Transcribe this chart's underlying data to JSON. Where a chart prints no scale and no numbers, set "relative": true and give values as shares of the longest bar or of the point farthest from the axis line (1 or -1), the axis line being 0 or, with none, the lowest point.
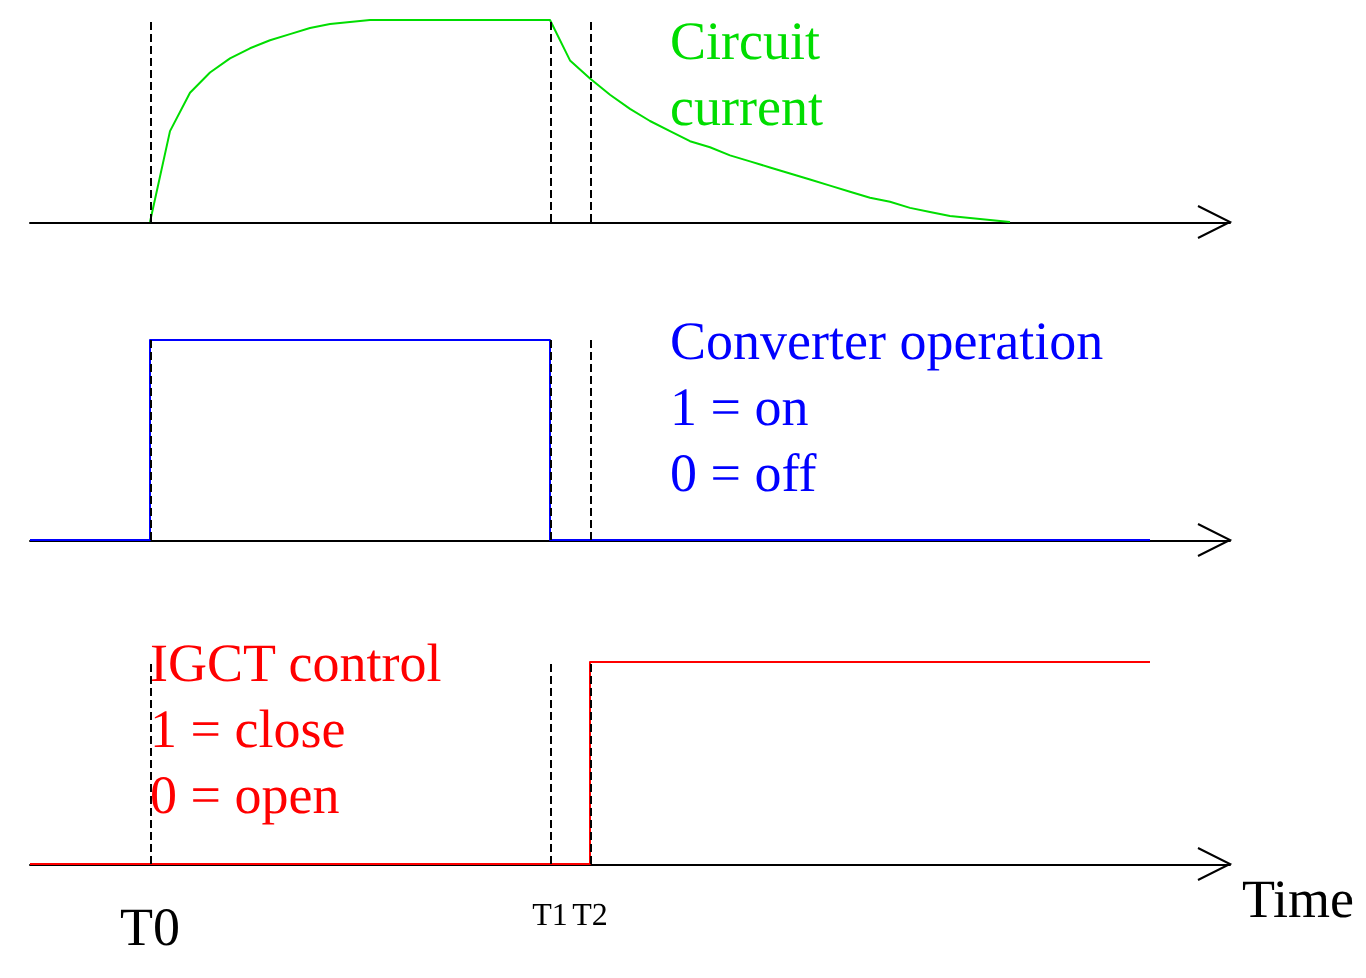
{
  "chart_data": [
    {
      "type": "line",
      "relative": true,
      "tick_labels": false,
      "grid": false,
      "marker": "none",
      "line_style": "solid",
      "categories": [
        null,
        null,
        null,
        null,
        null,
        null,
        "T0",
        null,
        null,
        null,
        null,
        null,
        null,
        null,
        null,
        null,
        null,
        null,
        null,
        null,
        null,
        null,
        null,
        null,
        null,
        null,
        "T1",
        null,
        "T2",
        null,
        null,
        null,
        null,
        null,
        null,
        null,
        null,
        null,
        null,
        null,
        null,
        null,
        null,
        null,
        null,
        null,
        null,
        null,
        null,
        null,
        null,
        null,
        null,
        null,
        null,
        null,
        null,
        null,
        null,
        null,
        null
      ],
      "series": [
        {
          "name": "Circuit current",
          "color": "#00dd00",
          "values": [
            null,
            null,
            null,
            null,
            null,
            null,
            0,
            0.45,
            0.64,
            0.74,
            0.81,
            0.86,
            0.9,
            0.93,
            0.96,
            0.98,
            0.99,
            1,
            1,
            1,
            1,
            1,
            1,
            1,
            1,
            1,
            1,
            0.8,
            0.71,
            0.63,
            0.56,
            0.5,
            0.45,
            0.4,
            0.37,
            0.33,
            0.3,
            0.27,
            0.24,
            0.21,
            0.18,
            0.15,
            0.12,
            0.1,
            0.07,
            0.05,
            0.03,
            0.02,
            0.01,
            0,
            null,
            null,
            null,
            null,
            null,
            null,
            null,
            null,
            null,
            null,
            null
          ]
        }
      ],
      "ref_lines": [
        {
          "axis": "x",
          "value": "T0",
          "color": "#000000",
          "line_style": "dashed"
        },
        {
          "axis": "x",
          "value": "T1",
          "color": "#000000",
          "line_style": "dashed"
        },
        {
          "axis": "x",
          "value": "T2",
          "color": "#000000",
          "line_style": "dashed"
        }
      ]
    },
    {
      "type": "step",
      "relative": true,
      "tick_labels": false,
      "grid": false,
      "marker": "none",
      "line_style": "solid",
      "categories": [
        null,
        null,
        null,
        null,
        null,
        null,
        "T0",
        null,
        null,
        null,
        null,
        null,
        null,
        null,
        null,
        null,
        null,
        null,
        null,
        null,
        null,
        null,
        null,
        null,
        null,
        null,
        "T1",
        null,
        "T2",
        null,
        null,
        null,
        null,
        null,
        null,
        null,
        null,
        null,
        null,
        null,
        null,
        null,
        null,
        null,
        null,
        null,
        null,
        null,
        null,
        null,
        null,
        null,
        null,
        null,
        null,
        null,
        null,
        null,
        null,
        null,
        null
      ],
      "series": [
        {
          "name": "Converter operation",
          "color": "#0000ff",
          "values": [
            0,
            0,
            0,
            0,
            0,
            0,
            1,
            1,
            1,
            1,
            1,
            1,
            1,
            1,
            1,
            1,
            1,
            1,
            1,
            1,
            1,
            1,
            1,
            1,
            1,
            1,
            0,
            0,
            0,
            0,
            0,
            0,
            0,
            0,
            0,
            0,
            0,
            0,
            0,
            0,
            0,
            0,
            0,
            0,
            0,
            0,
            0,
            0,
            0,
            0,
            0,
            0,
            0,
            0,
            0,
            0,
            0,
            null,
            null,
            null,
            null
          ]
        }
      ],
      "annotations": [
        "1 = on",
        "0 = off"
      ],
      "ref_lines": [
        {
          "axis": "x",
          "value": "T0",
          "color": "#000000",
          "line_style": "dashed"
        },
        {
          "axis": "x",
          "value": "T1",
          "color": "#000000",
          "line_style": "dashed"
        },
        {
          "axis": "x",
          "value": "T2",
          "color": "#000000",
          "line_style": "dashed"
        }
      ]
    },
    {
      "type": "step",
      "relative": true,
      "tick_labels": "x",
      "xlabel": "Time",
      "grid": false,
      "marker": "none",
      "line_style": "solid",
      "categories": [
        null,
        null,
        null,
        null,
        null,
        null,
        "T0",
        null,
        null,
        null,
        null,
        null,
        null,
        null,
        null,
        null,
        null,
        null,
        null,
        null,
        null,
        null,
        null,
        null,
        null,
        null,
        "T1",
        null,
        "T2",
        null,
        null,
        null,
        null,
        null,
        null,
        null,
        null,
        null,
        null,
        null,
        null,
        null,
        null,
        null,
        null,
        null,
        null,
        null,
        null,
        null,
        null,
        null,
        null,
        null,
        null,
        null,
        null,
        null,
        null,
        null,
        null
      ],
      "series": [
        {
          "name": "IGCT control",
          "color": "#ff0000",
          "values": [
            0,
            0,
            0,
            0,
            0,
            0,
            0,
            0,
            0,
            0,
            0,
            0,
            0,
            0,
            0,
            0,
            0,
            0,
            0,
            0,
            0,
            0,
            0,
            0,
            0,
            0,
            0,
            0,
            1,
            1,
            1,
            1,
            1,
            1,
            1,
            1,
            1,
            1,
            1,
            1,
            1,
            1,
            1,
            1,
            1,
            1,
            1,
            1,
            1,
            1,
            1,
            1,
            1,
            1,
            1,
            1,
            1,
            null,
            null,
            null,
            null
          ]
        }
      ],
      "annotations": [
        "1 = close",
        "0 = open"
      ],
      "ref_lines": [
        {
          "axis": "x",
          "value": "T0",
          "color": "#000000",
          "line_style": "dashed"
        },
        {
          "axis": "x",
          "value": "T1",
          "color": "#000000",
          "line_style": "dashed"
        },
        {
          "axis": "x",
          "value": "T2",
          "color": "#000000",
          "line_style": "dashed"
        }
      ]
    }
  ]
}
